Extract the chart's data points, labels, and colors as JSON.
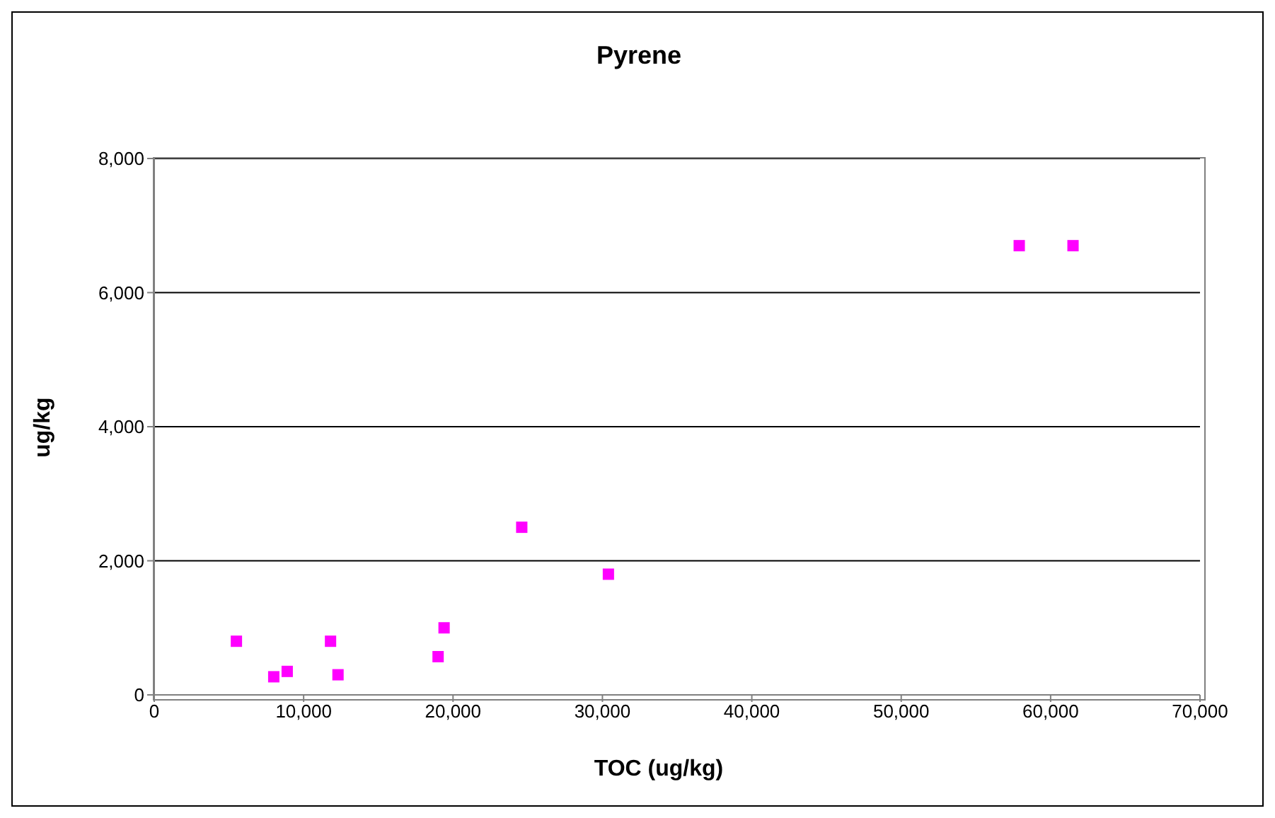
{
  "chart_data": {
    "type": "scatter",
    "title": "Pyrene",
    "xlabel": "TOC (ug/kg)",
    "ylabel": "ug/kg",
    "x": [
      5500,
      8000,
      8900,
      11800,
      12300,
      19000,
      19400,
      24600,
      30400,
      57900,
      61500
    ],
    "series": [
      {
        "color": "#ff00ff",
        "values": [
          800,
          270,
          350,
          800,
          300,
          570,
          1000,
          2500,
          1800,
          6700,
          6700
        ]
      }
    ],
    "xlim": [
      0,
      70000
    ],
    "xticks": [
      0,
      {
        "value": 10000,
        "label": "10,000"
      },
      {
        "value": 20000,
        "label": "20,000"
      },
      {
        "value": 30000,
        "label": "30,000"
      },
      {
        "value": 40000,
        "label": "40,000"
      },
      {
        "value": 50000,
        "label": "50,000"
      },
      {
        "value": 60000,
        "label": "60,000"
      },
      {
        "value": 70000,
        "label": "70,000"
      }
    ],
    "ylim": [
      0,
      8000
    ],
    "yticks": [
      0,
      {
        "value": 2000,
        "label": "2,000"
      },
      {
        "value": 4000,
        "label": "4,000"
      },
      {
        "value": 6000,
        "label": "6,000"
      },
      {
        "value": 8000,
        "label": "8,000"
      }
    ],
    "grid": "y",
    "marker": "square",
    "legend": false
  }
}
